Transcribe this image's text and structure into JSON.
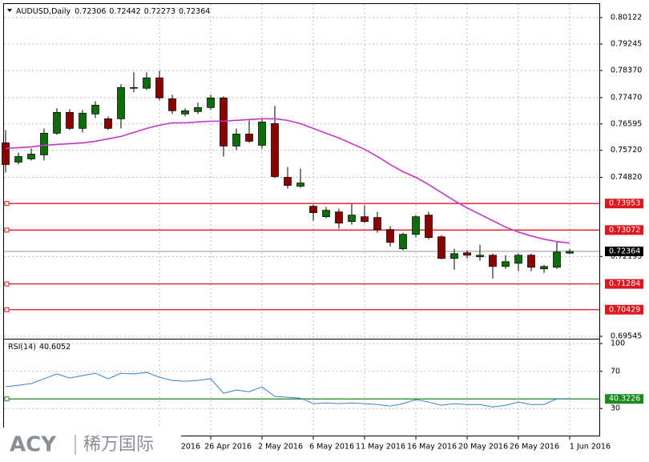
{
  "chart_data": [
    {
      "type": "candlestick",
      "title": "AUDUSD,Daily",
      "categories": [
        null,
        null,
        null,
        null,
        null,
        null,
        null,
        null,
        null,
        null,
        null,
        null,
        "2016",
        null,
        null,
        null,
        "26 Apr 2016",
        null,
        null,
        null,
        "2 May 2016",
        null,
        null,
        null,
        "6 May 2016",
        null,
        null,
        null,
        "11 May 2016",
        null,
        null,
        null,
        "16 May 2016",
        null,
        null,
        null,
        "20 May 2016",
        null,
        null,
        null,
        "26 May 2016",
        null,
        null,
        null,
        "1 Jun 2016"
      ],
      "open": [
        0.75966,
        0.75327,
        0.75433,
        0.75567,
        0.76286,
        0.76978,
        0.76446,
        0.76925,
        0.76765,
        0.76765,
        0.77804,
        0.77778,
        0.78124,
        0.77431,
        0.76925,
        0.77005,
        0.77138,
        0.77458,
        0.7586,
        0.76259,
        0.75886,
        0.76606,
        0.74821,
        0.74528,
        0.73862,
        0.73515,
        0.73675,
        0.73355,
        0.73515,
        0.73489,
        0.73089,
        0.7245,
        0.72929,
        0.73569,
        0.72849,
        0.7213,
        0.72316,
        0.72183,
        0.72237,
        0.71864,
        0.7197,
        0.72237,
        0.71784,
        0.71837,
        0.72306
      ],
      "high": [
        0.76392,
        0.75646,
        0.7578,
        0.76446,
        0.77112,
        0.77085,
        0.77058,
        0.77351,
        0.76845,
        0.77911,
        0.7831,
        0.7831,
        0.78364,
        0.77565,
        0.77112,
        0.77298,
        0.77565,
        0.77511,
        0.76446,
        0.76712,
        0.76765,
        0.77192,
        0.75167,
        0.75114,
        0.73915,
        0.73835,
        0.73782,
        0.73942,
        0.73888,
        0.73675,
        0.73196,
        0.72982,
        0.73569,
        0.73675,
        0.72903,
        0.7245,
        0.72396,
        0.72583,
        0.7229,
        0.72237,
        0.7229,
        0.7229,
        0.71917,
        0.72689,
        0.72442
      ],
      "low": [
        0.7498,
        0.75247,
        0.7538,
        0.7538,
        0.76233,
        0.76392,
        0.76312,
        0.76792,
        0.76392,
        0.76446,
        0.77644,
        0.77724,
        0.77378,
        0.76925,
        0.76845,
        0.76925,
        0.77058,
        0.75513,
        0.75726,
        0.75966,
        0.7578,
        0.74794,
        0.74448,
        0.74474,
        0.73382,
        0.73462,
        0.73116,
        0.73249,
        0.73302,
        0.72982,
        0.7253,
        0.72396,
        0.72823,
        0.72769,
        0.72103,
        0.71757,
        0.7213,
        0.7205,
        0.71464,
        0.71784,
        0.71704,
        0.71704,
        0.7165,
        0.71784,
        0.72273
      ],
      "close": [
        0.75247,
        0.75513,
        0.75593,
        0.76286,
        0.76978,
        0.76446,
        0.76952,
        0.77218,
        0.76446,
        0.77804,
        0.77778,
        0.78124,
        0.77458,
        0.77032,
        0.77032,
        0.77138,
        0.77458,
        0.7586,
        0.76259,
        0.76019,
        0.76659,
        0.74847,
        0.74554,
        0.74634,
        0.73648,
        0.73728,
        0.73302,
        0.73569,
        0.73355,
        0.73089,
        0.72663,
        0.72929,
        0.73515,
        0.72823,
        0.7213,
        0.7229,
        0.72237,
        0.72237,
        0.71864,
        0.72023,
        0.72237,
        0.71837,
        0.71864,
        0.72343,
        0.72364
      ],
      "colors": {
        "up": "#0a6e0a",
        "down": "#8b0000"
      },
      "ma": {
        "color": "#cc33cc",
        "values": [
          0.7578,
          0.75806,
          0.75833,
          0.75886,
          0.75913,
          0.7594,
          0.75966,
          0.76019,
          0.76099,
          0.76179,
          0.76312,
          0.76446,
          0.76552,
          0.76632,
          0.76632,
          0.76659,
          0.76685,
          0.76685,
          0.76712,
          0.76739,
          0.76765,
          0.76765,
          0.76712,
          0.76606,
          0.76446,
          0.76286,
          0.76126,
          0.7594,
          0.75753,
          0.75513,
          0.75247,
          0.75007,
          0.74821,
          0.74581,
          0.74314,
          0.74048,
          0.73808,
          0.73595,
          0.73382,
          0.73169,
          0.73009,
          0.72876,
          0.72769,
          0.72689,
          0.72636
        ]
      },
      "hlines": [
        0.73953,
        0.73072,
        0.71284,
        0.70429
      ],
      "hline_color": "#e0161e",
      "ylim": [
        0.69466,
        0.80575
      ],
      "yticks": [
        {
          "value": 0.80122,
          "label": "0.80122"
        },
        {
          "value": 0.79245,
          "label": "0.79245"
        },
        {
          "value": 0.7837,
          "label": "0.78370"
        },
        {
          "value": 0.7747,
          "label": "0.77470"
        },
        {
          "value": 0.76595,
          "label": "0.76595"
        },
        {
          "value": 0.7572,
          "label": "0.75720"
        },
        {
          "value": 0.7482,
          "label": "0.74820"
        },
        {
          "value": 0.72195,
          "label": "0.72195"
        },
        {
          "value": 0.69545,
          "label": "0.69545"
        }
      ],
      "grid": true,
      "logo": [
        "ACY",
        "稀万国际"
      ]
    },
    {
      "type": "line",
      "title": "RSI(14)",
      "color": "#3a7fd5",
      "values": [
        53.3,
        55.1,
        56.8,
        62.0,
        67.2,
        62.8,
        65.4,
        68.0,
        62.0,
        68.0,
        67.2,
        68.9,
        63.7,
        60.2,
        59.4,
        60.2,
        62.0,
        46.4,
        49.9,
        48.1,
        53.3,
        43.0,
        42.1,
        41.2,
        35.2,
        36.0,
        35.2,
        36.0,
        35.2,
        34.3,
        32.6,
        35.2,
        39.5,
        36.9,
        33.4,
        35.2,
        34.3,
        34.3,
        31.7,
        33.4,
        36.9,
        34.3,
        34.3,
        40.4,
        40.6052
      ],
      "hline": 40.3226,
      "hline_color": "#1a8a1a",
      "ylim": [
        0,
        104.3
      ],
      "yticks": [
        100,
        70,
        30
      ],
      "grid": true
    }
  ]
}
